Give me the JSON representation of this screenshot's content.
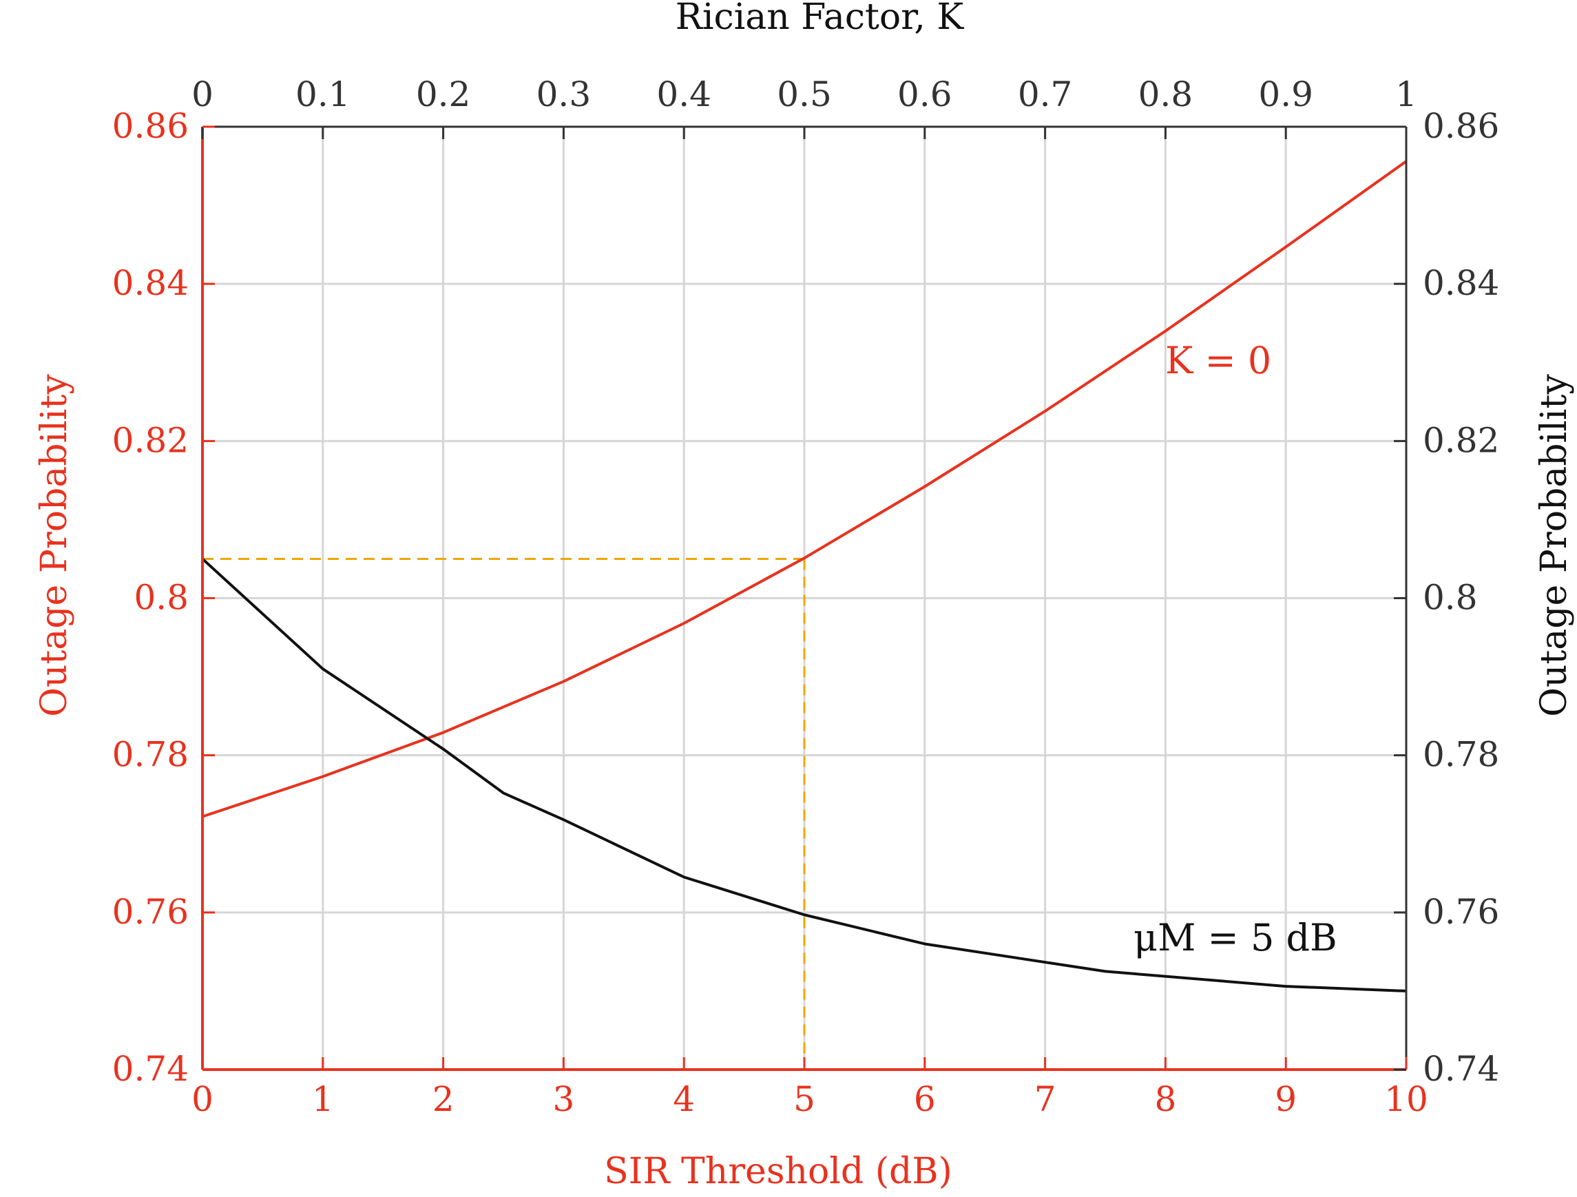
{
  "chart_data": {
    "type": "line",
    "title": "",
    "xlabel": "SIR Threshold (dB)",
    "x2label": "Rician Factor, K",
    "ylabel_left": "Outage Probability",
    "ylabel_right": "Outage Probability",
    "xlim": [
      0,
      10
    ],
    "x2lim": [
      0,
      1
    ],
    "ylim": [
      0.74,
      0.86
    ],
    "xticks": [
      "0",
      "1",
      "2",
      "3",
      "4",
      "5",
      "6",
      "7",
      "8",
      "9",
      "10"
    ],
    "x2ticks": [
      "0",
      "0.1",
      "0.2",
      "0.3",
      "0.4",
      "0.5",
      "0.6",
      "0.7",
      "0.8",
      "0.9",
      "1"
    ],
    "yticks": [
      "0.74",
      "0.76",
      "0.78",
      "0.8",
      "0.82",
      "0.84",
      "0.86"
    ],
    "grid": true,
    "colors": {
      "red": "#e8321e",
      "black": "#111111",
      "dashed": "#f0a500",
      "axis": "#333333"
    },
    "series": [
      {
        "name": "K = 0",
        "axis": "bottom-left",
        "color": "#e8321e",
        "x": [
          0,
          1,
          2,
          3,
          4,
          5,
          6,
          7,
          8,
          9,
          10
        ],
        "y": [
          0.7722,
          0.7773,
          0.7829,
          0.7894,
          0.7968,
          0.8051,
          0.8142,
          0.8238,
          0.834,
          0.8447,
          0.8556
        ]
      },
      {
        "name": "μM = 5 dB",
        "axis": "top-right",
        "color": "#111111",
        "x": [
          0,
          0.1,
          0.2,
          0.25,
          0.3,
          0.4,
          0.5,
          0.6,
          0.75,
          0.9,
          1.0
        ],
        "y": [
          0.805,
          0.791,
          0.7808,
          0.7752,
          0.7718,
          0.7645,
          0.7597,
          0.756,
          0.7525,
          0.7506,
          0.75
        ]
      }
    ],
    "reference_lines": {
      "x": 5,
      "y": 0.805,
      "style": "dashed"
    },
    "annotations": [
      {
        "text": "K = 0",
        "x": 8.5,
        "y": 0.829,
        "color": "#e8321e"
      },
      {
        "text": "μM = 5 dB",
        "x": 8.5,
        "y": 0.7565,
        "color": "#111111"
      }
    ]
  }
}
